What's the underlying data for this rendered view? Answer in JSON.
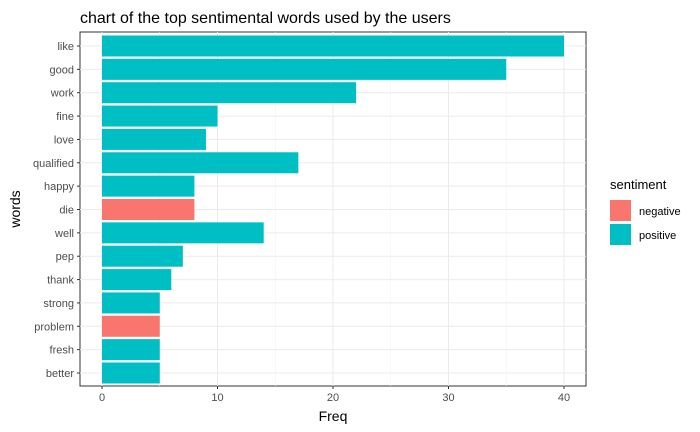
{
  "chart_data": {
    "type": "bar",
    "orientation": "horizontal",
    "title": "chart of the top sentimental words used by the users",
    "xlabel": "Freq",
    "ylabel": "words",
    "xlim": [
      0,
      42
    ],
    "x_ticks": [
      0,
      10,
      20,
      30,
      40
    ],
    "grid": true,
    "categories": [
      "like",
      "good",
      "work",
      "fine",
      "love",
      "qualified",
      "happy",
      "die",
      "well",
      "pep",
      "thank",
      "strong",
      "problem",
      "fresh",
      "better"
    ],
    "values": [
      40,
      35,
      22,
      10,
      9,
      17,
      8,
      8,
      14,
      7,
      6,
      5,
      5,
      5,
      5
    ],
    "sentiment": [
      "positive",
      "positive",
      "positive",
      "positive",
      "positive",
      "positive",
      "positive",
      "negative",
      "positive",
      "positive",
      "positive",
      "positive",
      "negative",
      "positive",
      "positive"
    ],
    "legend": {
      "title": "sentiment",
      "placement": "right",
      "entries": [
        {
          "label": "negative",
          "color": "#F8766D"
        },
        {
          "label": "positive",
          "color": "#00BFC4"
        }
      ]
    }
  }
}
